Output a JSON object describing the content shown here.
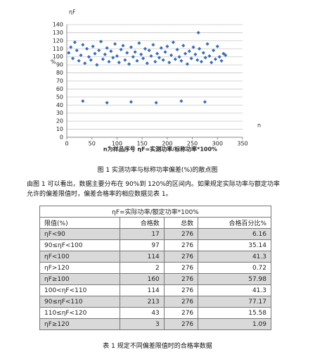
{
  "chart_data": {
    "type": "scatter",
    "y_label_top": "ηF",
    "y_label": "%",
    "x_label": "n",
    "legend_note": "n为样品序号    ηF=实测功率/标称功率*100%",
    "color": "#3b6fb6",
    "grid": true,
    "xlim": [
      0,
      350
    ],
    "xticks": [
      0,
      50,
      100,
      150,
      200,
      250,
      300,
      350
    ],
    "ylim": [
      0,
      140
    ],
    "yticks": [
      0,
      10,
      20,
      30,
      40,
      50,
      60,
      70,
      80,
      90,
      100,
      110,
      120,
      130,
      140
    ],
    "x": [
      4,
      8,
      12,
      16,
      20,
      24,
      28,
      32,
      36,
      40,
      44,
      48,
      52,
      56,
      60,
      64,
      68,
      72,
      76,
      80,
      84,
      88,
      92,
      96,
      100,
      104,
      108,
      112,
      116,
      120,
      124,
      128,
      132,
      136,
      140,
      144,
      148,
      152,
      156,
      160,
      164,
      168,
      172,
      176,
      180,
      184,
      188,
      192,
      196,
      200,
      204,
      208,
      212,
      216,
      220,
      224,
      228,
      232,
      236,
      240,
      244,
      248,
      252,
      256,
      260,
      264,
      268,
      272,
      276,
      280,
      284,
      288,
      292,
      296,
      300,
      304,
      308,
      312,
      316,
      32,
      80,
      128,
      178,
      228,
      275,
      262
    ],
    "values": [
      105,
      112,
      98,
      118,
      108,
      95,
      102,
      115,
      92,
      110,
      100,
      96,
      113,
      104,
      90,
      108,
      119,
      97,
      103,
      111,
      94,
      107,
      99,
      116,
      101,
      93,
      109,
      114,
      96,
      105,
      91,
      112,
      100,
      106,
      95,
      117,
      103,
      98,
      110,
      92,
      108,
      101,
      115,
      94,
      104,
      99,
      111,
      96,
      106,
      113,
      93,
      102,
      118,
      97,
      109,
      100,
      95,
      114,
      104,
      91,
      107,
      98,
      112,
      103,
      96,
      110,
      94,
      105,
      99,
      116,
      101,
      93,
      108,
      97,
      113,
      100,
      95,
      104,
      102,
      45,
      43,
      44,
      43,
      45,
      44,
      130
    ]
  },
  "document": {
    "figure_caption": "图 1  实测功率与标称功率偏差(%)的散点图",
    "paragraph": "由图 1 可以看出，数据主要分布在 90%到 120%的区间内。如果规定实际功率与额定功率允许的偏差限值时，偏差合格率的相应数据见表 1。",
    "table": {
      "title": "ηF=实际功率/额定功率*100%",
      "header": [
        "限值(%)",
        "合格数",
        "总数",
        "合格百分比%"
      ],
      "rows": [
        [
          "ηF<90",
          "17",
          "276",
          "6.16"
        ],
        [
          "90≤ηF<100",
          "97",
          "276",
          "35.14"
        ],
        [
          "ηF<100",
          "114",
          "276",
          "41.3"
        ],
        [
          "ηF>120",
          "2",
          "276",
          "0.72"
        ],
        [
          "ηF≥100",
          "160",
          "276",
          "57.98"
        ],
        [
          "100<ηF<110",
          "114",
          "276",
          "41.3"
        ],
        [
          "90≤ηF<110",
          "213",
          "276",
          "77.17"
        ],
        [
          "110≤ηF<120",
          "43",
          "276",
          "15.58"
        ],
        [
          "ηF≥120",
          "3",
          "276",
          "1.09"
        ]
      ]
    },
    "table_caption": "表 1  规定不同偏差限值时的合格率数据"
  }
}
